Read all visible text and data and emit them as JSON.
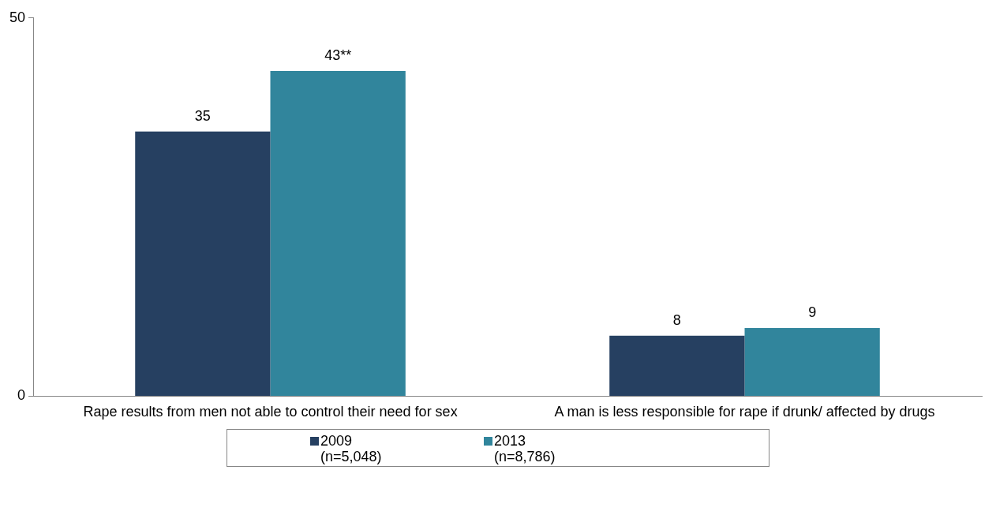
{
  "chart_data": {
    "type": "bar",
    "categories": [
      "Rape results from men not able to control their need for sex",
      "A man is less responsible for rape if drunk/ affected by drugs"
    ],
    "series": [
      {
        "name": "2009\n(n=5,048)",
        "color": "#264061",
        "values": [
          35,
          8
        ],
        "value_labels": [
          "35",
          "8"
        ]
      },
      {
        "name": "2013\n(n=8,786)",
        "color": "#31859c",
        "values": [
          43,
          9
        ],
        "value_labels": [
          "43**",
          "9"
        ]
      }
    ],
    "ylim": [
      0,
      50
    ],
    "yticks": [
      0,
      50
    ],
    "grid": false,
    "legend": "bottom"
  }
}
